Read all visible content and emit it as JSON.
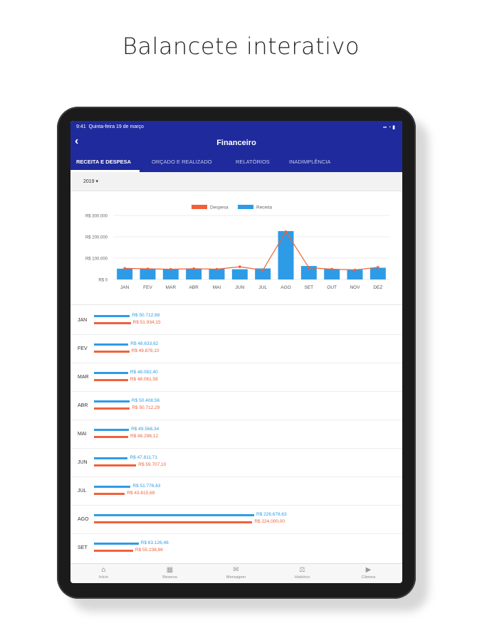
{
  "headline": "Balancete interativo",
  "status": {
    "time": "9:41",
    "date": "Quinta-feira 19 de março",
    "icons": "▪▪ ◔ ▮"
  },
  "header": {
    "back_icon": "‹",
    "title": "Financeiro"
  },
  "tabs": [
    "RECEITA E DESPESA",
    "ORÇADO E REALIZADO",
    "RELATÓRIOS",
    "INADIMPLÊNCIA"
  ],
  "year_filter": {
    "value": "2019 ▾"
  },
  "chart_data": {
    "type": "bar",
    "categories": [
      "JAN",
      "FEV",
      "MAR",
      "ABR",
      "MAI",
      "JUN",
      "JUL",
      "AGO",
      "SET",
      "OUT",
      "NOV",
      "DEZ"
    ],
    "series": [
      {
        "name": "Receita",
        "type": "bar",
        "color": "#2e9be6",
        "values": [
          50712.69,
          48633.62,
          48082.4,
          50408.56,
          49568.34,
          47811.71,
          51776.63,
          226678.63,
          63126.48,
          48500,
          46000,
          55000
        ]
      },
      {
        "name": "Despesa",
        "type": "line",
        "color": "#f0613b",
        "values": [
          51934.15,
          49878.1,
          48061.58,
          50712.29,
          48298.12,
          59707.1,
          43615.69,
          224000.0,
          55238.86,
          48500,
          45000,
          57000
        ]
      }
    ],
    "yticks": [
      "R$ 300.000",
      "R$ 200.000",
      "R$ 100.000",
      "R$ 0"
    ],
    "ylim": [
      0,
      300000
    ],
    "legend": [
      "Despesa",
      "Receita"
    ],
    "legend_position": "top"
  },
  "monthly_list": [
    {
      "month": "JAN",
      "receita": "R$ 50.712,69",
      "despesa": "R$ 51.934,15",
      "r": 50712.69,
      "d": 51934.15
    },
    {
      "month": "FEV",
      "receita": "R$ 48.633,62",
      "despesa": "R$ 49.878,10",
      "r": 48633.62,
      "d": 49878.1
    },
    {
      "month": "MAR",
      "receita": "R$ 48.082,40",
      "despesa": "R$ 48.061,58",
      "r": 48082.4,
      "d": 48061.58
    },
    {
      "month": "ABR",
      "receita": "R$ 50.408,56",
      "despesa": "R$ 50.712,29",
      "r": 50408.56,
      "d": 50712.29
    },
    {
      "month": "MAI",
      "receita": "R$ 49.568,34",
      "despesa": "R$ 48.298,12",
      "r": 49568.34,
      "d": 48298.12
    },
    {
      "month": "JUN",
      "receita": "R$ 47.811,71",
      "despesa": "R$ 59.707,10",
      "r": 47811.71,
      "d": 59707.1
    },
    {
      "month": "JUL",
      "receita": "R$ 51.776,63",
      "despesa": "R$ 43.615,69",
      "r": 51776.63,
      "d": 43615.69
    },
    {
      "month": "AGO",
      "receita": "R$ 226.678,63",
      "despesa": "R$ 224.000,00",
      "r": 226678.63,
      "d": 224000.0
    },
    {
      "month": "SET",
      "receita": "R$ 63.126,48",
      "despesa": "R$ 55.238,86",
      "r": 63126.48,
      "d": 55238.86
    }
  ],
  "bottom_nav": [
    {
      "label": "Início",
      "icon": "⌂"
    },
    {
      "label": "Reserva",
      "icon": "▦"
    },
    {
      "label": "Mensagem",
      "icon": "✉"
    },
    {
      "label": "Histórico",
      "icon": "⚖"
    },
    {
      "label": "Câmera",
      "icon": "▶"
    }
  ],
  "colors": {
    "primary": "#1f2a9c",
    "receita": "#2e9be6",
    "despesa": "#f0613b"
  }
}
